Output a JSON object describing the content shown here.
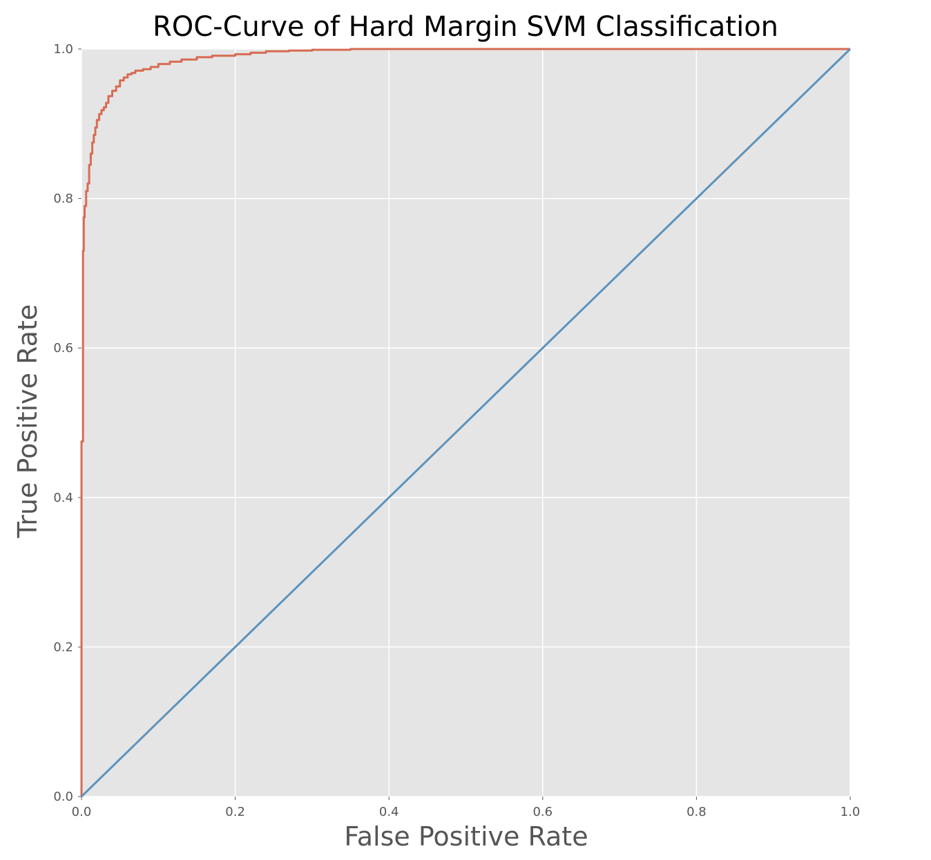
{
  "chart_data": {
    "type": "line",
    "title": "ROC-Curve of Hard Margin SVM Classification",
    "xlabel": "False Positive Rate",
    "ylabel": "True Positive Rate",
    "xlim": [
      0.0,
      1.0
    ],
    "ylim": [
      0.0,
      1.0
    ],
    "xticks": [
      "0.0",
      "0.2",
      "0.4",
      "0.6",
      "0.8",
      "1.0"
    ],
    "yticks": [
      "0.0",
      "0.2",
      "0.4",
      "0.6",
      "0.8",
      "1.0"
    ],
    "grid": true,
    "legend": "none",
    "colors": {
      "background": "#e5e5e5",
      "grid": "#ffffff",
      "roc": "#d76b53",
      "diagonal": "#5b92bd"
    },
    "series": [
      {
        "x": [
          0.0,
          0.0,
          0.002,
          0.002,
          0.003,
          0.003,
          0.004,
          0.004,
          0.006,
          0.006,
          0.008,
          0.008,
          0.01,
          0.01,
          0.012,
          0.012,
          0.014,
          0.014,
          0.016,
          0.016,
          0.018,
          0.018,
          0.02,
          0.02,
          0.023,
          0.023,
          0.026,
          0.026,
          0.029,
          0.029,
          0.032,
          0.032,
          0.035,
          0.035,
          0.04,
          0.04,
          0.045,
          0.045,
          0.05,
          0.05,
          0.055,
          0.055,
          0.06,
          0.06,
          0.065,
          0.065,
          0.07,
          0.07,
          0.08,
          0.08,
          0.09,
          0.09,
          0.1,
          0.1,
          0.115,
          0.115,
          0.13,
          0.13,
          0.15,
          0.15,
          0.17,
          0.17,
          0.2,
          0.2,
          0.22,
          0.22,
          0.24,
          0.24,
          0.27,
          0.27,
          0.3,
          0.3,
          0.35,
          0.35,
          1.0
        ],
        "y": [
          0.0,
          0.475,
          0.475,
          0.73,
          0.73,
          0.775,
          0.775,
          0.79,
          0.79,
          0.81,
          0.81,
          0.82,
          0.82,
          0.845,
          0.845,
          0.86,
          0.86,
          0.875,
          0.875,
          0.885,
          0.885,
          0.895,
          0.895,
          0.905,
          0.905,
          0.913,
          0.913,
          0.918,
          0.918,
          0.922,
          0.922,
          0.928,
          0.928,
          0.937,
          0.937,
          0.944,
          0.944,
          0.95,
          0.95,
          0.958,
          0.958,
          0.962,
          0.962,
          0.966,
          0.966,
          0.968,
          0.968,
          0.971,
          0.971,
          0.973,
          0.973,
          0.976,
          0.976,
          0.98,
          0.98,
          0.983,
          0.983,
          0.986,
          0.986,
          0.989,
          0.989,
          0.991,
          0.991,
          0.993,
          0.993,
          0.995,
          0.995,
          0.997,
          0.997,
          0.998,
          0.998,
          0.999,
          0.999,
          1.0,
          1.0
        ]
      },
      {
        "x": [
          0.0,
          1.0
        ],
        "y": [
          0.0,
          1.0
        ]
      }
    ]
  }
}
